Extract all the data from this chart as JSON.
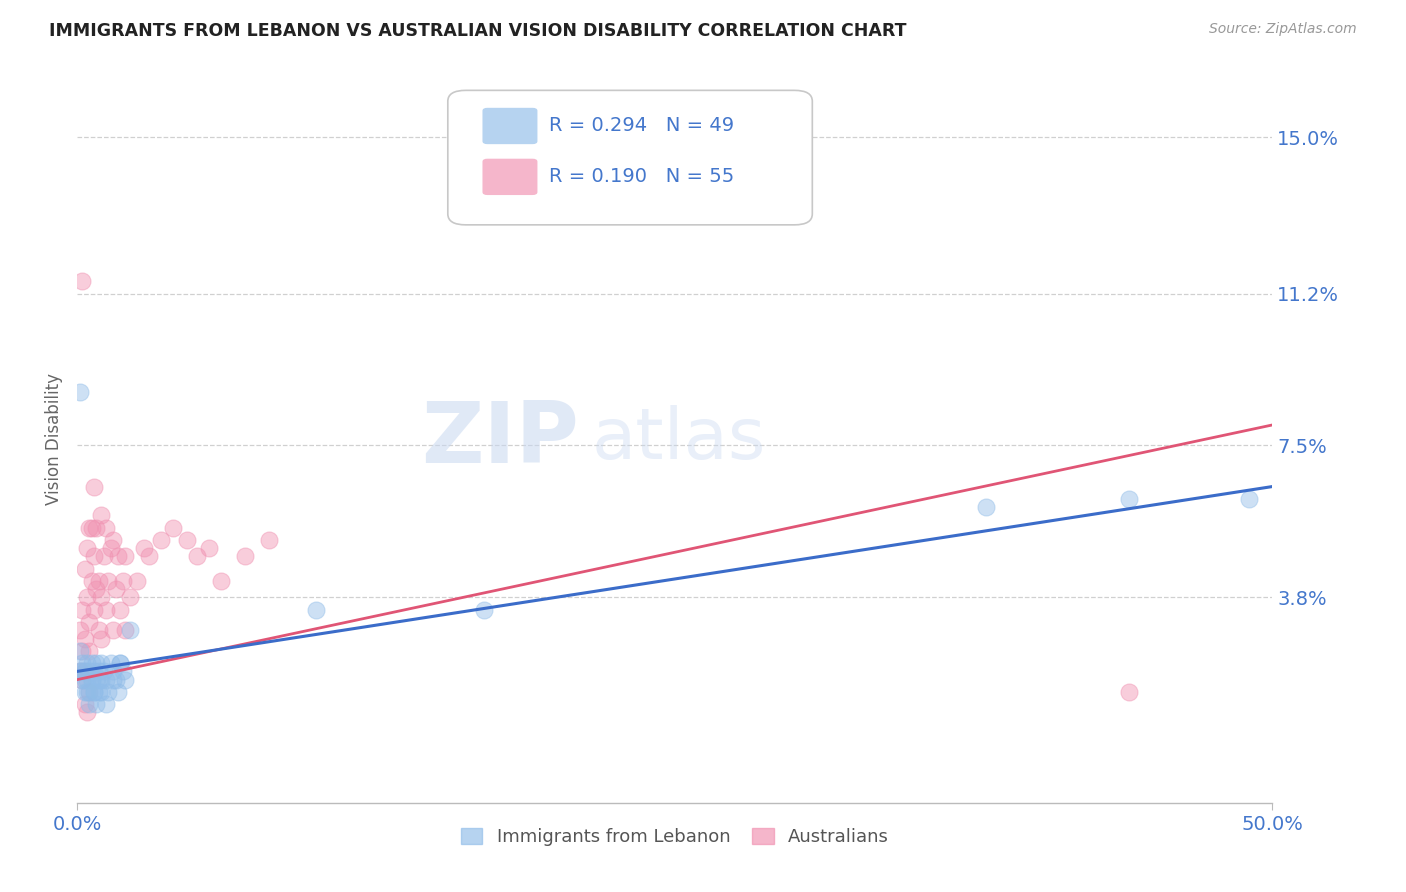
{
  "title": "IMMIGRANTS FROM LEBANON VS AUSTRALIAN VISION DISABILITY CORRELATION CHART",
  "source_text": "Source: ZipAtlas.com",
  "ylabel": "Vision Disability",
  "xlim": [
    0.0,
    0.5
  ],
  "ylim": [
    -0.012,
    0.165
  ],
  "yticks": [
    0.038,
    0.075,
    0.112,
    0.15
  ],
  "ytick_labels": [
    "3.8%",
    "7.5%",
    "11.2%",
    "15.0%"
  ],
  "xticks": [
    0.0,
    0.5
  ],
  "xtick_labels": [
    "0.0%",
    "50.0%"
  ],
  "series1_label": "Immigrants from Lebanon",
  "series2_label": "Australians",
  "series1_color": "#90bce8",
  "series2_color": "#f090b0",
  "trend1_color": "#3b6cc9",
  "trend2_color": "#e05575",
  "watermark_zip": "ZIP",
  "watermark_atlas": "atlas",
  "background_color": "#ffffff",
  "grid_color": "#d0d0d0",
  "title_color": "#222222",
  "tick_label_color": "#4477cc",
  "R1": "0.294",
  "N1": "49",
  "R2": "0.190",
  "N2": "55",
  "trend1_x0": 0.0,
  "trend1_y0": 0.02,
  "trend1_x1": 0.5,
  "trend1_y1": 0.065,
  "trend2_x0": 0.0,
  "trend2_y0": 0.018,
  "trend2_x1": 0.5,
  "trend2_y1": 0.08,
  "s1_x": [
    0.001,
    0.001,
    0.002,
    0.002,
    0.003,
    0.003,
    0.004,
    0.004,
    0.005,
    0.005,
    0.006,
    0.006,
    0.007,
    0.007,
    0.008,
    0.008,
    0.009,
    0.009,
    0.01,
    0.01,
    0.011,
    0.012,
    0.013,
    0.014,
    0.015,
    0.016,
    0.017,
    0.018,
    0.019,
    0.02,
    0.001,
    0.002,
    0.003,
    0.004,
    0.005,
    0.006,
    0.007,
    0.008,
    0.009,
    0.01,
    0.012,
    0.015,
    0.018,
    0.022,
    0.1,
    0.17,
    0.38,
    0.44,
    0.49
  ],
  "s1_y": [
    0.02,
    0.025,
    0.018,
    0.022,
    0.015,
    0.02,
    0.018,
    0.022,
    0.015,
    0.02,
    0.018,
    0.022,
    0.02,
    0.015,
    0.018,
    0.022,
    0.015,
    0.02,
    0.018,
    0.022,
    0.02,
    0.018,
    0.015,
    0.022,
    0.02,
    0.018,
    0.015,
    0.022,
    0.02,
    0.018,
    0.088,
    0.02,
    0.018,
    0.015,
    0.012,
    0.018,
    0.015,
    0.012,
    0.018,
    0.015,
    0.012,
    0.018,
    0.022,
    0.03,
    0.035,
    0.035,
    0.06,
    0.062,
    0.062
  ],
  "s2_x": [
    0.001,
    0.001,
    0.002,
    0.002,
    0.002,
    0.003,
    0.003,
    0.003,
    0.004,
    0.004,
    0.005,
    0.005,
    0.005,
    0.006,
    0.006,
    0.007,
    0.007,
    0.007,
    0.008,
    0.008,
    0.009,
    0.009,
    0.01,
    0.01,
    0.01,
    0.011,
    0.012,
    0.012,
    0.013,
    0.014,
    0.015,
    0.015,
    0.016,
    0.017,
    0.018,
    0.019,
    0.02,
    0.02,
    0.022,
    0.025,
    0.028,
    0.03,
    0.035,
    0.04,
    0.046,
    0.05,
    0.055,
    0.06,
    0.07,
    0.08,
    0.002,
    0.003,
    0.004,
    0.005,
    0.44
  ],
  "s2_y": [
    0.02,
    0.03,
    0.018,
    0.025,
    0.035,
    0.02,
    0.028,
    0.045,
    0.038,
    0.05,
    0.025,
    0.032,
    0.055,
    0.042,
    0.055,
    0.035,
    0.048,
    0.065,
    0.04,
    0.055,
    0.03,
    0.042,
    0.028,
    0.038,
    0.058,
    0.048,
    0.035,
    0.055,
    0.042,
    0.05,
    0.03,
    0.052,
    0.04,
    0.048,
    0.035,
    0.042,
    0.03,
    0.048,
    0.038,
    0.042,
    0.05,
    0.048,
    0.052,
    0.055,
    0.052,
    0.048,
    0.05,
    0.042,
    0.048,
    0.052,
    0.115,
    0.012,
    0.01,
    0.015,
    0.015
  ]
}
